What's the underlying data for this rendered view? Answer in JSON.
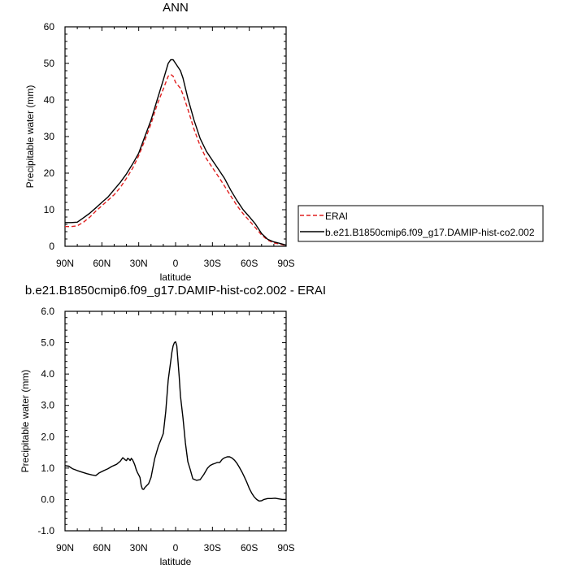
{
  "chart_data": [
    {
      "type": "line",
      "title": "ANN",
      "xlabel": "latitude",
      "ylabel": "Precipitable water (mm)",
      "xlim": [
        -90,
        90
      ],
      "ylim": [
        0,
        60
      ],
      "xticks": [
        "90N",
        "60N",
        "30N",
        "0",
        "30S",
        "60S",
        "90S"
      ],
      "yticks": [
        "0",
        "10",
        "20",
        "30",
        "40",
        "50",
        "60"
      ],
      "legend_position": "right",
      "series": [
        {
          "name": "ERAI",
          "color": "#e02020",
          "dash": "dashed",
          "x": [
            -90,
            -85,
            -80,
            -75,
            -70,
            -65,
            -60,
            -55,
            -50,
            -45,
            -40,
            -35,
            -30,
            -25,
            -20,
            -15,
            -10,
            -6,
            -4,
            -2,
            0,
            2,
            4,
            6,
            10,
            15,
            20,
            25,
            30,
            35,
            40,
            45,
            50,
            55,
            60,
            65,
            70,
            75,
            80,
            85,
            90
          ],
          "y": [
            5.4,
            5.4,
            5.6,
            6.6,
            7.9,
            9.6,
            11.1,
            12.6,
            14.1,
            16.1,
            18.6,
            21.3,
            24.8,
            29.0,
            33.5,
            38.7,
            43.0,
            46.5,
            47.0,
            46.5,
            44.8,
            44.0,
            43.2,
            41.5,
            37.5,
            32.0,
            27.5,
            24.0,
            21.5,
            19.0,
            16.4,
            13.7,
            11.1,
            8.9,
            7.0,
            5.1,
            3.1,
            1.7,
            0.9,
            0.6,
            0.2
          ]
        },
        {
          "name": "b.e21.B1850cmip6.f09_g17.DAMIP-hist-co2.002",
          "color": "#000000",
          "dash": "solid",
          "x": [
            -90,
            -85,
            -80,
            -75,
            -70,
            -65,
            -60,
            -55,
            -50,
            -45,
            -40,
            -35,
            -30,
            -25,
            -20,
            -15,
            -10,
            -6,
            -4,
            -2,
            0,
            2,
            4,
            6,
            10,
            15,
            20,
            25,
            30,
            35,
            40,
            45,
            50,
            55,
            60,
            65,
            70,
            75,
            80,
            85,
            90
          ],
          "y": [
            6.5,
            6.5,
            6.6,
            7.8,
            9.0,
            10.5,
            12.0,
            13.5,
            15.5,
            17.5,
            19.8,
            22.5,
            25.5,
            30.0,
            34.5,
            40.0,
            45.5,
            50.0,
            51.0,
            51.0,
            50.0,
            49.0,
            48.0,
            46.0,
            40.5,
            34.5,
            29.5,
            26.0,
            23.5,
            21.0,
            18.5,
            15.3,
            12.5,
            10.0,
            8.1,
            6.1,
            3.5,
            1.9,
            1.2,
            0.8,
            0.3
          ]
        }
      ]
    },
    {
      "type": "line",
      "title": "b.e21.B1850cmip6.f09_g17.DAMIP-hist-co2.002 - ERAI",
      "xlabel": "latitude",
      "ylabel": "Precipitable water (mm)",
      "xlim": [
        -90,
        90
      ],
      "ylim": [
        -1.0,
        6.0
      ],
      "xticks": [
        "90N",
        "60N",
        "30N",
        "0",
        "30S",
        "60S",
        "90S"
      ],
      "yticks": [
        "-1.0",
        "0.0",
        "1.0",
        "2.0",
        "3.0",
        "4.0",
        "5.0",
        "6.0"
      ],
      "series": [
        {
          "color": "#000000",
          "dash": "solid",
          "x": [
            -90,
            -87,
            -84,
            -80,
            -76,
            -72,
            -68,
            -65,
            -62,
            -58,
            -55,
            -52,
            -48,
            -45,
            -43,
            -42,
            -41,
            -40,
            -39,
            -38,
            -37,
            -36,
            -35,
            -34,
            -33,
            -32,
            -31,
            -30,
            -29,
            -28,
            -27,
            -26,
            -25,
            -24,
            -22,
            -20,
            -17,
            -14,
            -12,
            -10,
            -8,
            -6,
            -4,
            -3,
            -2,
            -1,
            0,
            1,
            2,
            3,
            4,
            6,
            8,
            10,
            12,
            14,
            17,
            20,
            23,
            26,
            28,
            30,
            32,
            34,
            36,
            38,
            40,
            42,
            44,
            46,
            48,
            50,
            52,
            54,
            56,
            58,
            60,
            62,
            64,
            66,
            68,
            70,
            72,
            75,
            78,
            81,
            84,
            87,
            90
          ],
          "y": [
            1.08,
            1.06,
            0.98,
            0.92,
            0.87,
            0.82,
            0.78,
            0.76,
            0.85,
            0.93,
            0.98,
            1.05,
            1.12,
            1.22,
            1.33,
            1.3,
            1.26,
            1.24,
            1.31,
            1.29,
            1.24,
            1.31,
            1.26,
            1.18,
            1.08,
            0.95,
            0.85,
            0.78,
            0.7,
            0.45,
            0.33,
            0.32,
            0.38,
            0.42,
            0.5,
            0.7,
            1.3,
            1.7,
            1.9,
            2.1,
            2.8,
            3.8,
            4.4,
            4.7,
            4.9,
            5.0,
            5.03,
            4.9,
            4.4,
            3.9,
            3.3,
            2.6,
            1.8,
            1.2,
            0.95,
            0.66,
            0.61,
            0.63,
            0.8,
            1.0,
            1.08,
            1.12,
            1.15,
            1.18,
            1.18,
            1.28,
            1.33,
            1.36,
            1.36,
            1.32,
            1.25,
            1.15,
            1.02,
            0.88,
            0.72,
            0.55,
            0.35,
            0.2,
            0.08,
            0.0,
            -0.05,
            -0.04,
            0.0,
            0.03,
            0.03,
            0.04,
            0.02,
            0.0,
            0.0
          ]
        }
      ]
    }
  ]
}
